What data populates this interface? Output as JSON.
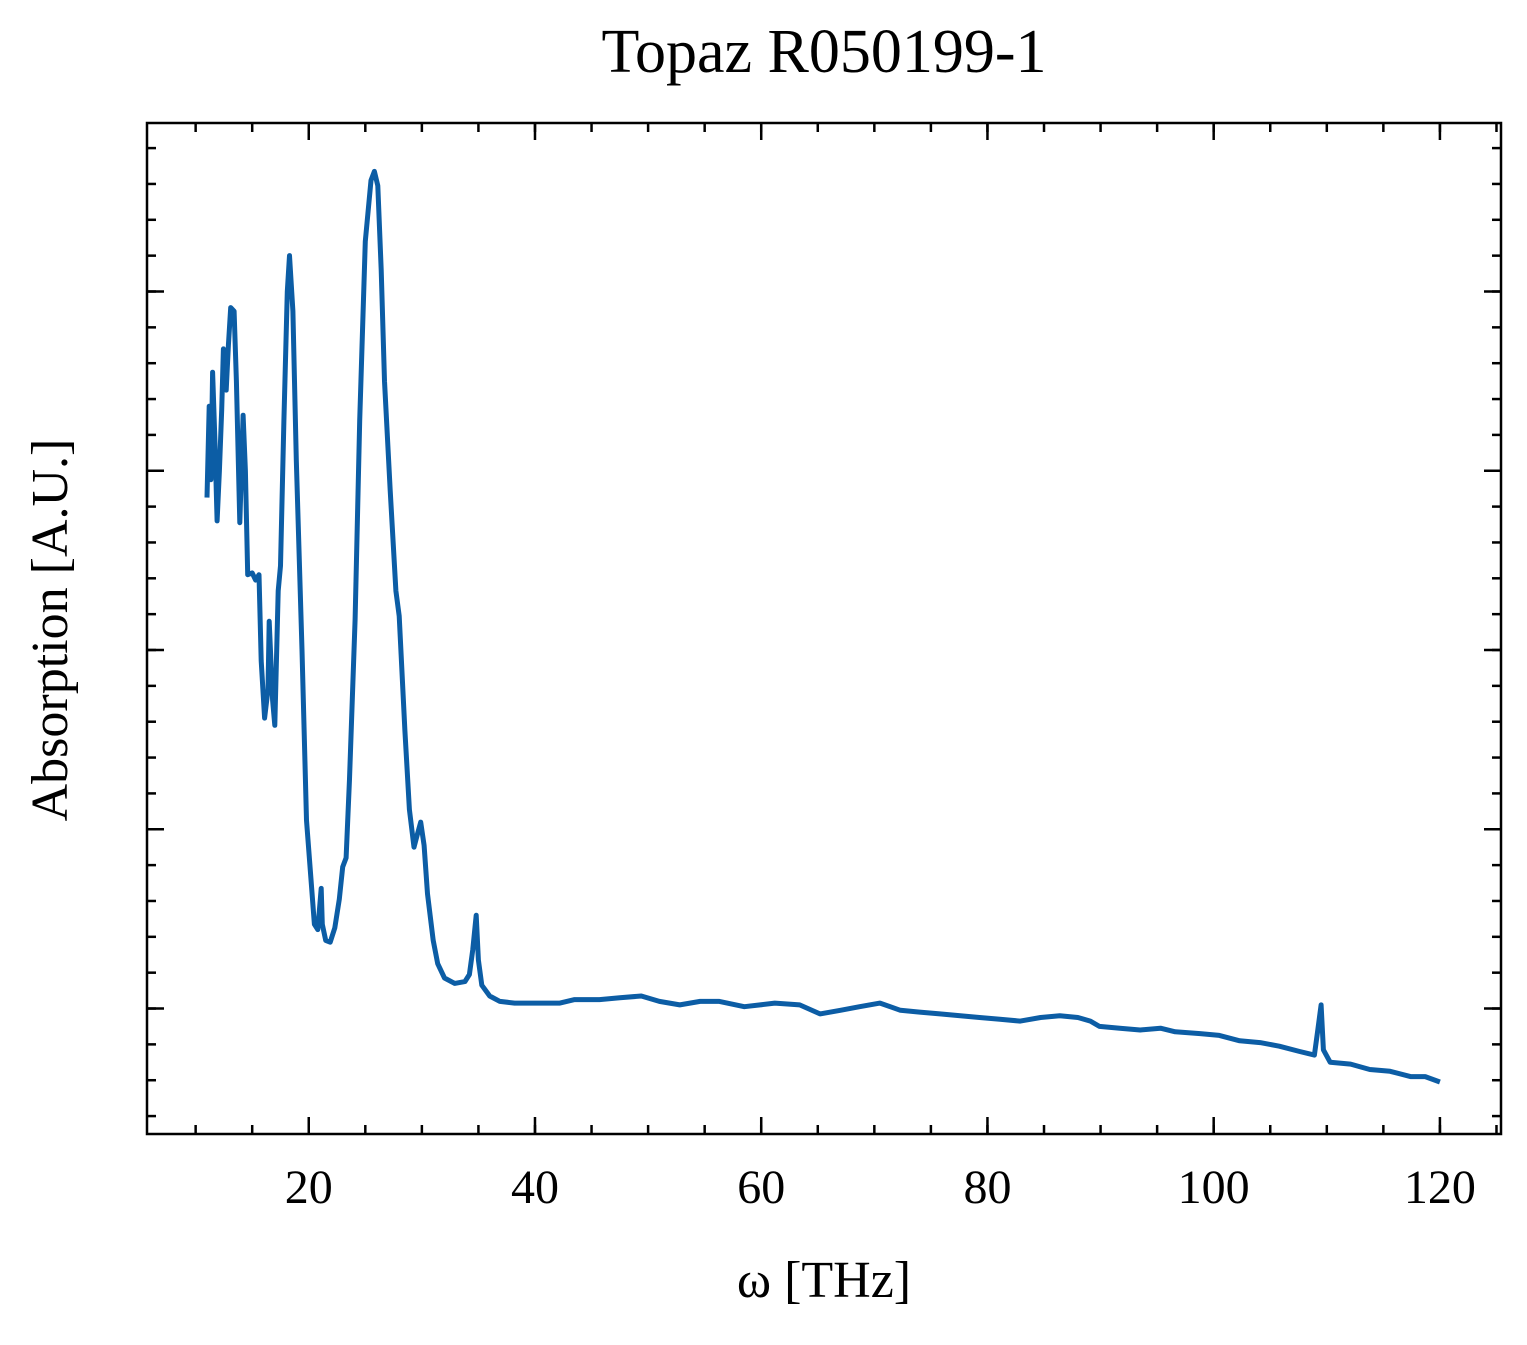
{
  "chart_data": {
    "type": "line",
    "title": "Topaz R050199-1",
    "x_label": "ω [THz]",
    "y_label": "Absorption [A.U.]",
    "color": "#0c5da5",
    "x": [
      11.0,
      11.2,
      11.35,
      11.5,
      11.7,
      11.9,
      12.1,
      12.3,
      12.45,
      12.7,
      12.9,
      13.1,
      13.4,
      13.6,
      13.9,
      14.2,
      14.4,
      14.6,
      15.0,
      15.3,
      15.6,
      15.8,
      16.1,
      16.4,
      16.5,
      16.8,
      17.0,
      17.3,
      17.5,
      17.8,
      18.1,
      18.3,
      18.6,
      18.9,
      19.4,
      19.8,
      20.2,
      20.5,
      20.8,
      21.1,
      21.2,
      21.5,
      21.9,
      22.3,
      22.7,
      23.0,
      23.3,
      23.6,
      24.1,
      24.5,
      25.0,
      25.5,
      25.8,
      26.1,
      26.4,
      26.7,
      27.2,
      27.7,
      28.0,
      28.5,
      28.9,
      29.3,
      29.6,
      29.9,
      30.2,
      30.5,
      31.0,
      31.4,
      32.0,
      32.9,
      33.8,
      34.2,
      34.5,
      34.8,
      35.0,
      35.3,
      36.0,
      36.9,
      38.2,
      40.4,
      42.2,
      43.5,
      45.7,
      47.5,
      49.4,
      51.0,
      52.8,
      54.6,
      56.3,
      58.5,
      59.9,
      61.2,
      63.4,
      65.2,
      67.0,
      68.7,
      70.5,
      72.3,
      74.0,
      75.8,
      77.6,
      79.3,
      81.1,
      82.9,
      84.7,
      86.4,
      88.0,
      89.1,
      89.9,
      91.7,
      93.5,
      95.3,
      96.6,
      98.8,
      100.5,
      102.3,
      104.1,
      105.8,
      107.6,
      108.9,
      109.2,
      109.5,
      109.7,
      110.3,
      112.1,
      113.8,
      115.6,
      117.4,
      118.7,
      120.0
    ],
    "values": [
      2.85,
      3.36,
      2.95,
      3.55,
      3.17,
      2.72,
      3.0,
      3.34,
      3.68,
      3.45,
      3.7,
      3.91,
      3.89,
      3.5,
      2.71,
      3.31,
      3.0,
      2.42,
      2.43,
      2.39,
      2.42,
      1.94,
      1.62,
      1.78,
      2.16,
      1.72,
      1.58,
      2.33,
      2.47,
      3.28,
      4.0,
      4.2,
      3.89,
      3.06,
      2.0,
      1.05,
      0.72,
      0.47,
      0.44,
      0.67,
      0.47,
      0.38,
      0.37,
      0.45,
      0.61,
      0.79,
      0.84,
      1.28,
      2.17,
      3.28,
      4.28,
      4.62,
      4.67,
      4.59,
      4.12,
      3.5,
      2.89,
      2.33,
      2.19,
      1.55,
      1.11,
      0.9,
      0.97,
      1.04,
      0.91,
      0.64,
      0.38,
      0.25,
      0.17,
      0.14,
      0.15,
      0.19,
      0.33,
      0.52,
      0.27,
      0.13,
      0.07,
      0.04,
      0.03,
      0.03,
      0.03,
      0.05,
      0.05,
      0.06,
      0.07,
      0.04,
      0.02,
      0.04,
      0.04,
      0.01,
      0.02,
      0.03,
      0.02,
      -0.03,
      -0.01,
      0.01,
      0.03,
      -0.01,
      -0.02,
      -0.03,
      -0.04,
      -0.05,
      -0.06,
      -0.07,
      -0.05,
      -0.04,
      -0.05,
      -0.07,
      -0.1,
      -0.11,
      -0.12,
      -0.11,
      -0.13,
      -0.14,
      -0.15,
      -0.18,
      -0.19,
      -0.21,
      -0.24,
      -0.26,
      -0.12,
      0.02,
      -0.23,
      -0.3,
      -0.31,
      -0.34,
      -0.35,
      -0.38,
      -0.38,
      -0.41
    ],
    "xlim": [
      5.7,
      125.4
    ],
    "xticks": [
      20,
      40,
      60,
      80,
      100,
      120
    ],
    "ylim": [
      -0.7,
      4.94
    ],
    "yticks": [
      0,
      1,
      2,
      3,
      4
    ]
  }
}
